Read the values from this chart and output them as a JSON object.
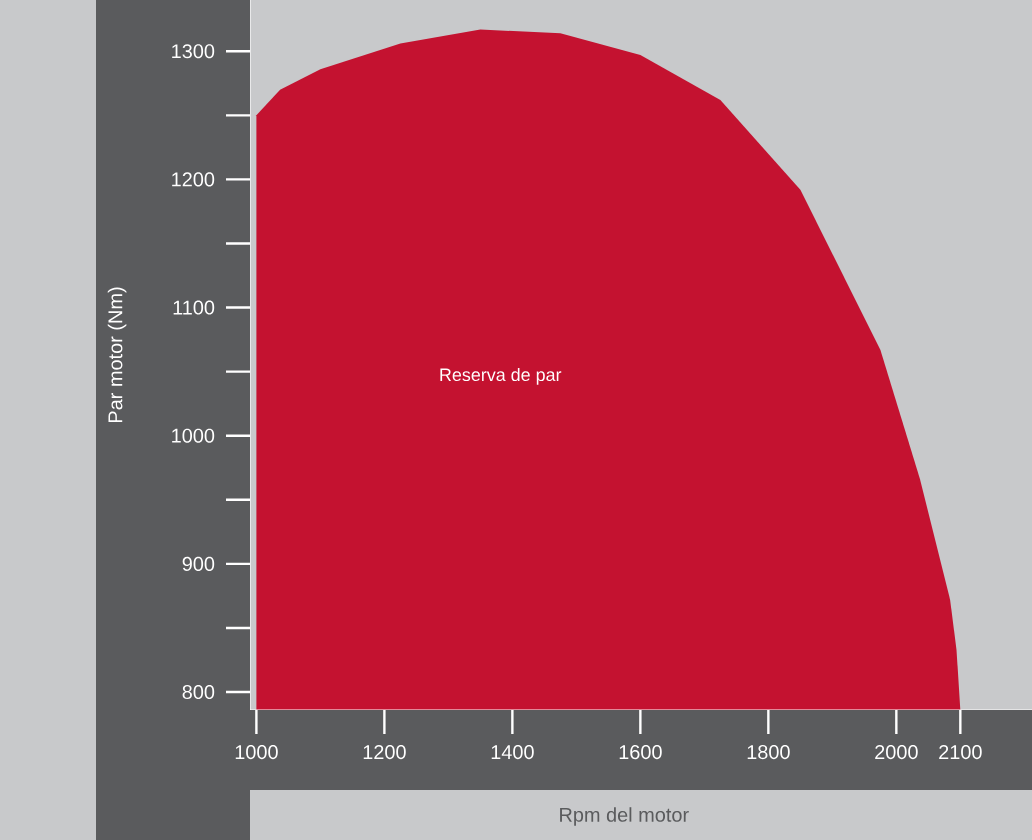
{
  "chart_data": {
    "type": "area",
    "xlabel": "Rpm del motor",
    "ylabel": "Par motor (Nm)",
    "color": "#c41230",
    "x": [
      1000,
      1037,
      1100,
      1225,
      1350,
      1475,
      1600,
      1725,
      1850,
      1975,
      2037,
      2084,
      2094,
      2100
    ],
    "values": [
      1250,
      1270,
      1286,
      1306,
      1317,
      1314,
      1297,
      1262,
      1192,
      1067,
      966,
      872,
      833,
      786
    ],
    "xlim": [
      990,
      2212
    ],
    "ylim": [
      786,
      1340
    ],
    "xticks": [
      1000,
      1200,
      1400,
      1600,
      1800,
      2000,
      2100
    ],
    "yticks": [
      800,
      {
        "value": 850,
        "label": null
      },
      900,
      {
        "value": 950,
        "label": null
      },
      1000,
      {
        "value": 1050,
        "label": null
      },
      1100,
      {
        "value": 1150,
        "label": null
      },
      1200,
      {
        "value": 1250,
        "label": null
      },
      1300
    ],
    "annotations": [
      "Reserva de par"
    ]
  }
}
